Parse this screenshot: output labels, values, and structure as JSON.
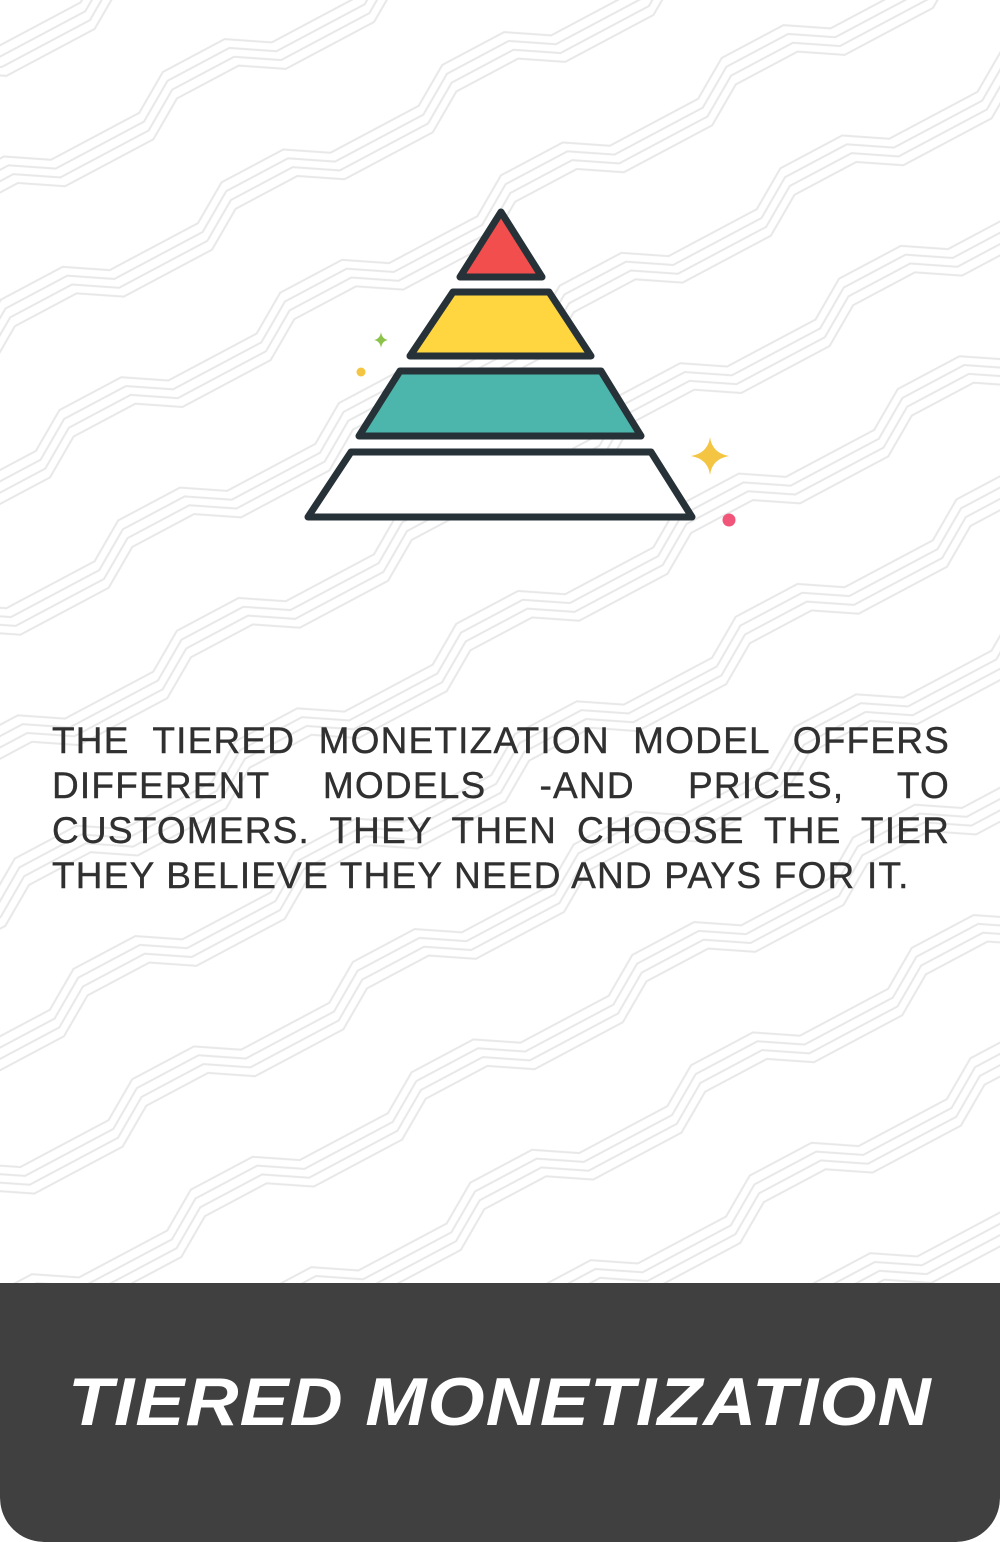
{
  "description": "THE TIERED MONETIZATION MODEL OFFERS DIFFERENT MODELS -AND PRICES, TO CUSTOMERS. THEY THEN CHOOSE THE TIER THEY BELIEVE THEY NEED AND PAYS FOR IT.",
  "footer": {
    "title": "TIERED MONETIZATION"
  },
  "illustration": {
    "icon": "pyramid-icon",
    "tier_colors": [
      "#f24e4e",
      "#ffd640",
      "#4db6ac",
      "#ffffff"
    ],
    "outline_color": "#263238",
    "sparkle_colors": [
      "#8bc34a",
      "#f4c542",
      "#f4c542",
      "#f2557a"
    ]
  },
  "colors": {
    "background": "#ffffff",
    "pattern": "#e6e6e6",
    "text": "#303030",
    "footer_background": "#404040",
    "footer_text": "#ffffff"
  }
}
